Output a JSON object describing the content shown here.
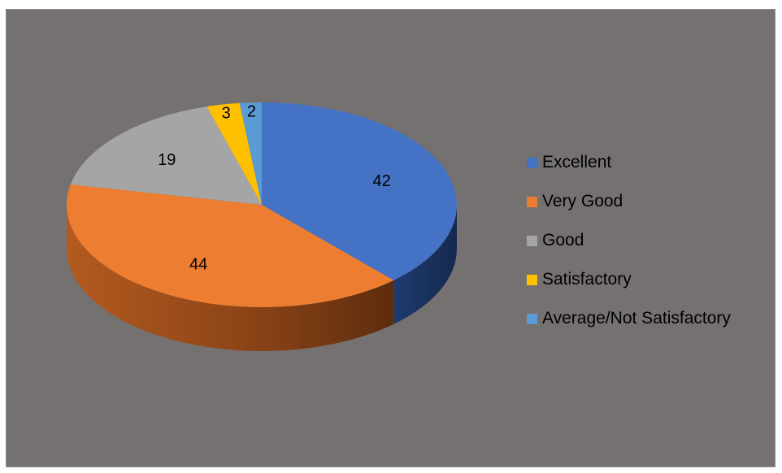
{
  "chart_data": {
    "type": "pie",
    "categories": [
      "Excellent",
      "Very Good",
      "Good",
      "Satisfactory",
      "Average/Not Satisfactory"
    ],
    "values": [
      42,
      44,
      19,
      3,
      2
    ],
    "colors": [
      "#4472c4",
      "#ed7d31",
      "#a5a5a5",
      "#ffc000",
      "#5b9bd5"
    ],
    "data_labels": [
      "42",
      "44",
      "19",
      "3",
      "2"
    ],
    "style": "3d",
    "legend_position": "right",
    "background_color": "#757170"
  }
}
